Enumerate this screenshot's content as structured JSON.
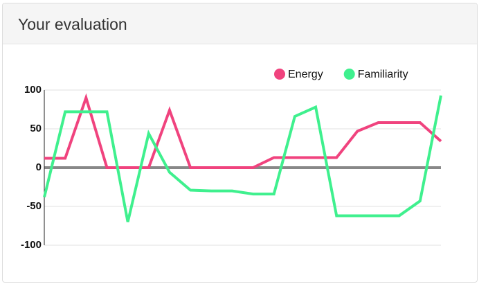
{
  "header": {
    "title": "Your evaluation"
  },
  "chart_data": {
    "type": "line",
    "categories": [
      null,
      null,
      null,
      null,
      null,
      null,
      null,
      null,
      null,
      null,
      null,
      null,
      null,
      null,
      null,
      null,
      null,
      null,
      null,
      null
    ],
    "series": [
      {
        "name": "Energy",
        "color": "#f0437e",
        "values": [
          12,
          12,
          90,
          0,
          0,
          0,
          74,
          0,
          0,
          0,
          0,
          13,
          13,
          13,
          13,
          47,
          58,
          58,
          58,
          34
        ]
      },
      {
        "name": "Familiarity",
        "color": "#3ff08e",
        "values": [
          -38,
          72,
          72,
          72,
          -70,
          44,
          -6,
          -29,
          -30,
          -30,
          -34,
          -34,
          66,
          78,
          -62,
          -62,
          -62,
          -62,
          -43,
          93
        ]
      }
    ],
    "ylim": [
      -100,
      100
    ],
    "yticks": [
      -100,
      -50,
      0,
      50,
      100
    ],
    "grid": true,
    "legend": "top-right"
  }
}
